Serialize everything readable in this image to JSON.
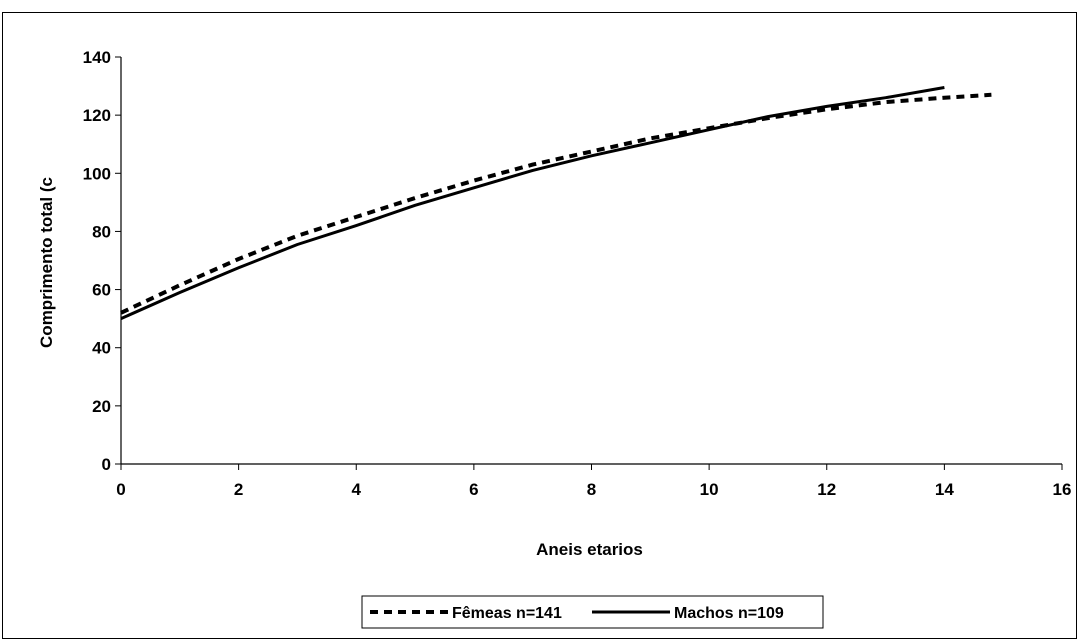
{
  "chart_data": {
    "type": "line",
    "title": "",
    "xlabel": "Aneis etarios",
    "ylabel": "Comprimento total (c",
    "xlim": [
      0,
      16
    ],
    "ylim": [
      0,
      140
    ],
    "xticks": [
      0,
      2,
      4,
      6,
      8,
      10,
      12,
      14,
      16
    ],
    "yticks": [
      0,
      20,
      40,
      60,
      80,
      100,
      120,
      140
    ],
    "grid": false,
    "legend_position": "bottom",
    "series": [
      {
        "name": "Fêmeas n=141",
        "style": "dashed",
        "color": "#000000",
        "x": [
          0,
          1,
          2,
          3,
          4,
          5,
          6,
          7,
          8,
          9,
          10,
          11,
          12,
          13,
          14,
          14.8
        ],
        "y": [
          52,
          61.5,
          70.5,
          78.5,
          85,
          91.5,
          97.5,
          103,
          107.5,
          112,
          115.5,
          119,
          122,
          124.5,
          126,
          127
        ]
      },
      {
        "name": "Machos n=109",
        "style": "solid",
        "color": "#000000",
        "x": [
          0,
          1,
          2,
          3,
          4,
          5,
          6,
          7,
          8,
          9,
          10,
          11,
          12,
          13,
          14
        ],
        "y": [
          50,
          59,
          67.5,
          75.5,
          82,
          89,
          95,
          101,
          106,
          110.5,
          115,
          119.5,
          123,
          126,
          129.5
        ]
      }
    ]
  }
}
